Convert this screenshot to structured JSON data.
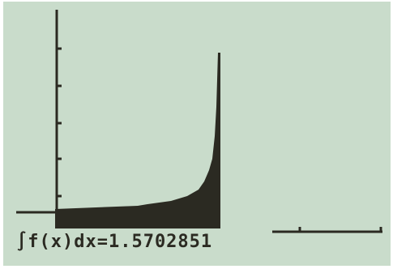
{
  "screen": {
    "result": "∫f(x)dx=1.5702851"
  }
}
